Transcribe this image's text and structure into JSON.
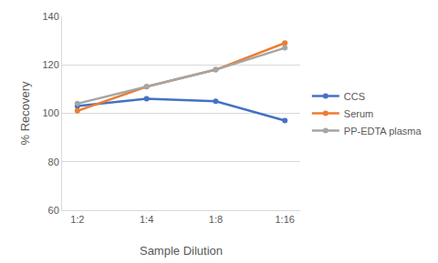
{
  "chart_data": {
    "type": "line",
    "x_label": "Sample Dilution",
    "y_label": "% Recovery",
    "categories": [
      "1:2",
      "1:4",
      "1:8",
      "1:16"
    ],
    "series": [
      {
        "name": "CCS",
        "color": "#4472c4",
        "values": [
          103,
          106,
          105,
          97
        ]
      },
      {
        "name": "Serum",
        "color": "#ed7d31",
        "values": [
          101,
          111,
          118,
          129
        ]
      },
      {
        "name": "PP-EDTA plasma",
        "color": "#a5a5a5",
        "values": [
          104,
          111,
          118,
          127
        ]
      }
    ],
    "ylim": [
      60,
      140
    ],
    "yticks": [
      60,
      80,
      100,
      120,
      140
    ],
    "grid": true,
    "legend": "right",
    "marker": "circle",
    "line_style": "solid"
  }
}
